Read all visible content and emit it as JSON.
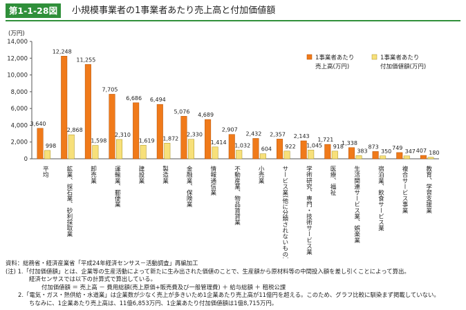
{
  "figure": {
    "label": "第1-1-28図",
    "title": "小規模事業者の1事業者あたり売上高と付加価値額",
    "accent": "#2f8f3a"
  },
  "chart_data": {
    "type": "bar",
    "yunit": "(万円)",
    "ylim": [
      0,
      14000
    ],
    "yticks": [
      0,
      2000,
      4000,
      6000,
      8000,
      10000,
      12000,
      14000
    ],
    "ytick_labels": [
      "0",
      "2,000",
      "4,000",
      "6,000",
      "8,000",
      "10,000",
      "12,000",
      "14,000"
    ],
    "grid": false,
    "legend_placement": "top-right",
    "categories": [
      "平均",
      "鉱業、採石業、砂利採取業",
      "卸売業",
      "運輸業、郵便業",
      "建設業",
      "製造業",
      "金融業、保険業",
      "情報通信業",
      "不動産業、物品賃貸業",
      "小売業",
      "サービス業(他に分類されないもの)",
      "学術研究、専門・技術サービス業",
      "医療、福祉",
      "生活関連サービス業、娯楽業",
      "宿泊業、飲食サービス業",
      "複合サービス事業",
      "教育、学習支援業"
    ],
    "series": [
      {
        "name": "1事業者あたり売上高(万円)",
        "color": "#f07a1a",
        "values": [
          3640,
          12248,
          11255,
          7705,
          6686,
          6494,
          5076,
          4689,
          2907,
          2432,
          2357,
          2143,
          1721,
          1338,
          873,
          749,
          407
        ],
        "labels": [
          "3,640",
          "12,248",
          "11,255",
          "7,705",
          "6,686",
          "6,494",
          "5,076",
          "4,689",
          "2,907",
          "2,432",
          "2,357",
          "2,143",
          "1,721",
          "1,338",
          "873",
          "749",
          "407"
        ]
      },
      {
        "name": "1事業者あたり付加価値額(万円)",
        "color": "#f7e07a",
        "values": [
          998,
          2868,
          1598,
          2310,
          1619,
          1872,
          2330,
          1414,
          1032,
          604,
          922,
          1045,
          918,
          383,
          350,
          347,
          180
        ],
        "labels": [
          "998",
          "2,868",
          "1,598",
          "2,310",
          "1,619",
          "1,872",
          "2,330",
          "1,414",
          "1,032",
          "604",
          "922",
          "1,045",
          "918",
          "383",
          "350",
          "347",
          "180"
        ]
      }
    ]
  },
  "notes": {
    "source": "資料：総務省・経済産業省「平成24年経済センサス－活動調査」再編加工",
    "note1": "(注) 1.「付加価値額」とは、企業等の生産活動によって新たに生み出された価値のことで、生産額から原材料等の中間投入額を差し引くことによって算出。",
    "note1b": "経済センサスでは以下の計算式で算出している。",
    "formula": "付加価値額 ＝ 売上高 － 費用総額(売上原価+販売費及び一般管理費) ＋ 給与総額 ＋ 租税公課",
    "note2": "2.「電気・ガス・熱供給・水道業」は企業数が少なく売上が多きいため1企業あたり売上高が11億円を超える。このため、グラフ比較に馴染まず掲載していない。",
    "note2b": "ちなみに、1企業あたり売上高は、11億6,853万円、1企業あたり付加価値額は1億8,715万円。"
  }
}
